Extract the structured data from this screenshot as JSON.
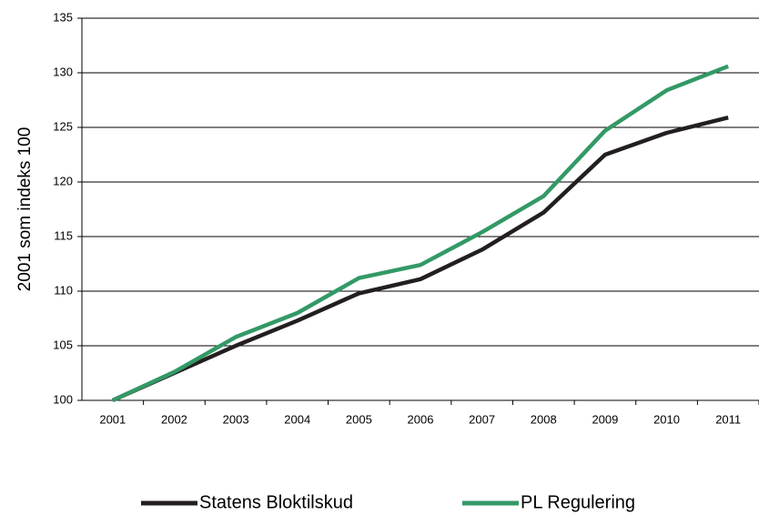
{
  "chart_data": {
    "type": "line",
    "y_label": "2001 som indeks 100",
    "categories": [
      "2001",
      "2002",
      "2003",
      "2004",
      "2005",
      "2006",
      "2007",
      "2008",
      "2009",
      "2010",
      "2011"
    ],
    "series": [
      {
        "name": "Statens Bloktilskud",
        "color": "#231f20",
        "values": [
          100,
          102.5,
          105,
          107.3,
          109.8,
          111.1,
          113.8,
          117.2,
          122.5,
          124.5,
          125.9
        ]
      },
      {
        "name": "PL Regulering",
        "color": "#339966",
        "values": [
          100,
          102.6,
          105.8,
          108.0,
          111.2,
          112.4,
          115.4,
          118.7,
          124.7,
          128.4,
          130.6
        ]
      }
    ],
    "ylim": [
      100,
      135
    ],
    "yticks": [
      100,
      105,
      110,
      115,
      120,
      125,
      130,
      135
    ],
    "grid": true
  }
}
